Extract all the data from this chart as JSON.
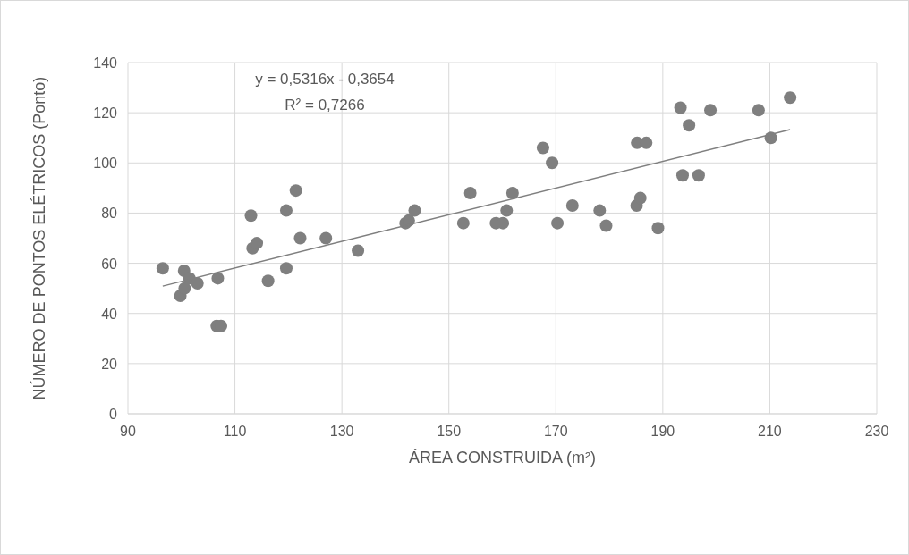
{
  "chart_data": {
    "type": "scatter",
    "xlabel": "ÁREA CONSTRUIDA (m²)",
    "ylabel": "NÚMERO DE PONTOS ELÉTRICOS (Ponto)",
    "annotations": [
      "y = 0,5316x - 0,3654",
      "R² = 0,7266"
    ],
    "xlim": [
      90,
      230
    ],
    "xticks": [
      90,
      110,
      130,
      150,
      170,
      190,
      210,
      230
    ],
    "ylim": [
      0,
      140
    ],
    "yticks": [
      0,
      20,
      40,
      60,
      80,
      100,
      120,
      140
    ],
    "grid": true,
    "marker": "circle",
    "series": [
      {
        "color": "#7f7f7f",
        "x": [
          96.5,
          99.8,
          100.5,
          100.6,
          101.5,
          103,
          106.6,
          107.4,
          106.8,
          113,
          113.3,
          114.1,
          116.2,
          119.6,
          119.6,
          121.4,
          122.2,
          127,
          133,
          141.9,
          142.5,
          143.6,
          152.7,
          154,
          158.8,
          160.1,
          160.8,
          161.9,
          167.6,
          169.3,
          170.3,
          173.1,
          178.2,
          179.4,
          185.1,
          185.2,
          185.8,
          186.9,
          189.1,
          193.3,
          193.7,
          194.9,
          196.7,
          198.9,
          207.9,
          210.2,
          213.8
        ],
        "values": [
          58,
          47,
          57,
          50,
          54,
          52,
          35,
          35,
          54,
          79,
          66,
          68,
          53,
          81,
          58,
          89,
          70,
          70,
          65,
          76,
          77,
          81,
          76,
          88,
          76,
          76,
          81,
          88,
          106,
          100,
          76,
          83,
          81,
          75,
          83,
          108,
          86,
          108,
          74,
          122,
          95,
          115,
          95,
          121,
          121,
          110,
          126
        ]
      },
      {
        "type": "line",
        "color": "#7f7f7f",
        "marker": "none",
        "x": [
          96.5,
          213.8
        ],
        "values": [
          50.9,
          113.3
        ]
      }
    ]
  }
}
